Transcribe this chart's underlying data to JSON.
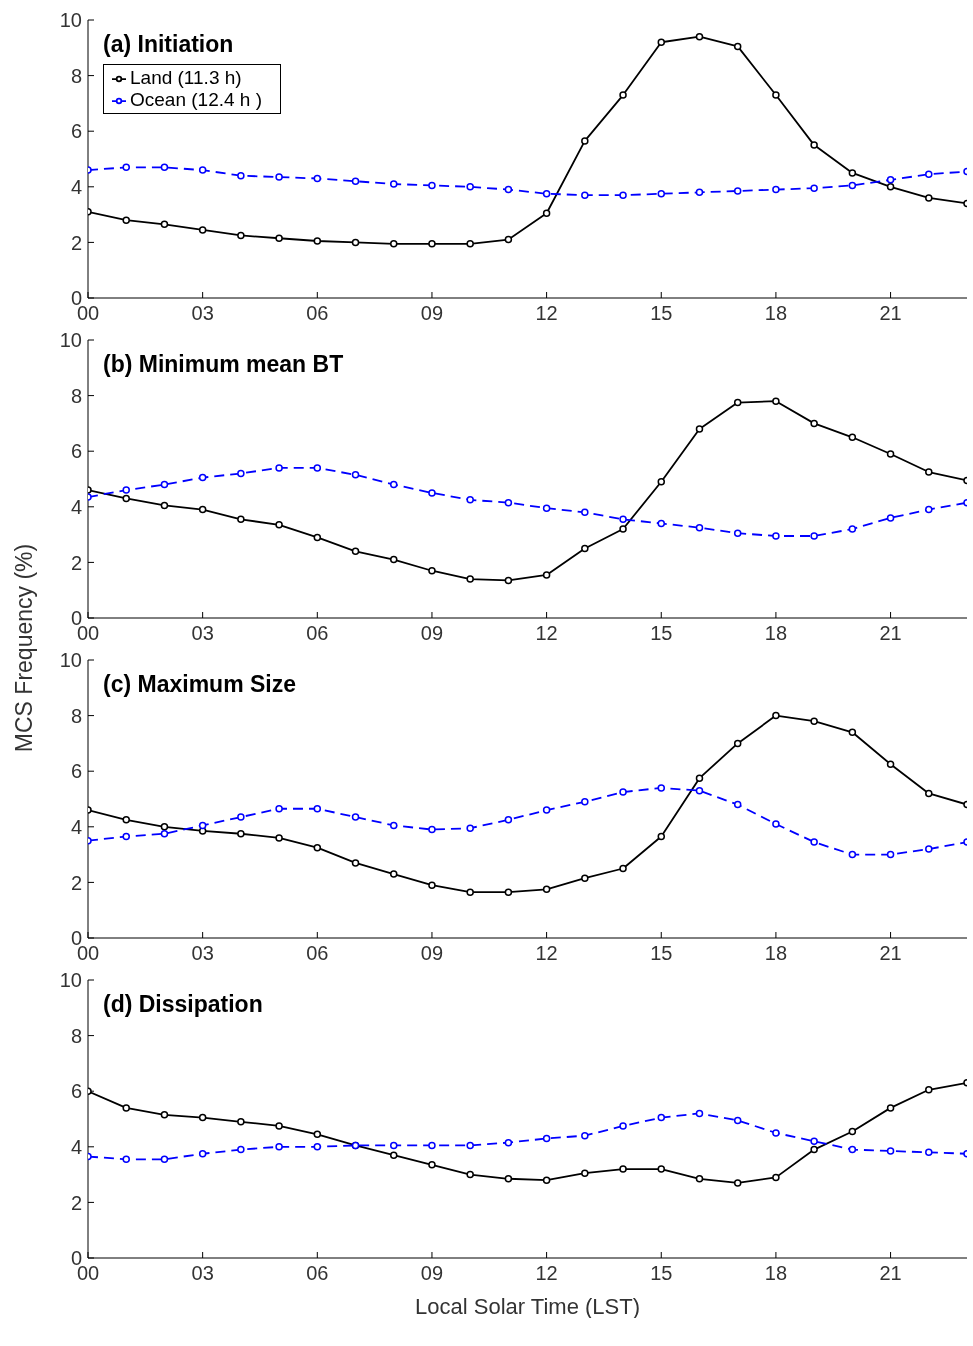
{
  "chart_data": [
    {
      "type": "line",
      "title": "(a) Initiation",
      "x": [
        0,
        1,
        2,
        3,
        4,
        5,
        6,
        7,
        8,
        9,
        10,
        11,
        12,
        13,
        14,
        15,
        16,
        17,
        18,
        19,
        20,
        21,
        22,
        23
      ],
      "xlim": [
        0,
        23
      ],
      "xticks": [
        {
          "value": 0,
          "label": "00"
        },
        {
          "value": 3,
          "label": "03"
        },
        {
          "value": 6,
          "label": "06"
        },
        {
          "value": 9,
          "label": "09"
        },
        12,
        15,
        18,
        21
      ],
      "ylim": [
        0,
        10
      ],
      "yticks": [
        0,
        2,
        4,
        6,
        8,
        10
      ],
      "grid": false,
      "legend": "top left",
      "marker": "circle",
      "series": [
        {
          "name": "Land (11.3 h)",
          "color": "#000000",
          "line_style": "solid",
          "values": [
            3.1,
            2.8,
            2.65,
            2.45,
            2.25,
            2.15,
            2.05,
            2.0,
            1.95,
            1.95,
            1.95,
            2.1,
            3.05,
            5.65,
            7.3,
            9.2,
            9.4,
            9.05,
            7.3,
            5.5,
            4.5,
            4.0,
            3.6,
            3.4
          ]
        },
        {
          "name": "Ocean (12.4 h )",
          "color": "#0000ff",
          "line_style": "dashed",
          "values": [
            4.6,
            4.7,
            4.7,
            4.6,
            4.4,
            4.35,
            4.3,
            4.2,
            4.1,
            4.05,
            4.0,
            3.9,
            3.75,
            3.7,
            3.7,
            3.75,
            3.8,
            3.85,
            3.9,
            3.95,
            4.05,
            4.25,
            4.45,
            4.55
          ]
        }
      ]
    },
    {
      "type": "line",
      "title": "(b) Minimum mean BT",
      "ylabel": "MCS Frequency (%)",
      "x": [
        0,
        1,
        2,
        3,
        4,
        5,
        6,
        7,
        8,
        9,
        10,
        11,
        12,
        13,
        14,
        15,
        16,
        17,
        18,
        19,
        20,
        21,
        22,
        23
      ],
      "xlim": [
        0,
        23
      ],
      "xticks": [
        {
          "value": 0,
          "label": "00"
        },
        {
          "value": 3,
          "label": "03"
        },
        {
          "value": 6,
          "label": "06"
        },
        {
          "value": 9,
          "label": "09"
        },
        12,
        15,
        18,
        21
      ],
      "ylim": [
        0,
        10
      ],
      "yticks": [
        0,
        2,
        4,
        6,
        8,
        10
      ],
      "grid": false,
      "marker": "circle",
      "series": [
        {
          "color": "#000000",
          "line_style": "solid",
          "values": [
            4.6,
            4.3,
            4.05,
            3.9,
            3.55,
            3.35,
            2.9,
            2.4,
            2.1,
            1.7,
            1.4,
            1.35,
            1.55,
            2.5,
            3.2,
            4.9,
            6.8,
            7.75,
            7.8,
            7.0,
            6.5,
            5.9,
            5.25,
            4.95
          ]
        },
        {
          "color": "#0000ff",
          "line_style": "dashed",
          "values": [
            4.35,
            4.6,
            4.8,
            5.05,
            5.2,
            5.4,
            5.4,
            5.15,
            4.8,
            4.5,
            4.25,
            4.15,
            3.95,
            3.8,
            3.55,
            3.4,
            3.25,
            3.05,
            2.95,
            2.95,
            3.2,
            3.6,
            3.9,
            4.15
          ]
        }
      ]
    },
    {
      "type": "line",
      "title": "(c) Maximum Size",
      "x": [
        0,
        1,
        2,
        3,
        4,
        5,
        6,
        7,
        8,
        9,
        10,
        11,
        12,
        13,
        14,
        15,
        16,
        17,
        18,
        19,
        20,
        21,
        22,
        23
      ],
      "xlim": [
        0,
        23
      ],
      "xticks": [
        {
          "value": 0,
          "label": "00"
        },
        {
          "value": 3,
          "label": "03"
        },
        {
          "value": 6,
          "label": "06"
        },
        {
          "value": 9,
          "label": "09"
        },
        12,
        15,
        18,
        21
      ],
      "ylim": [
        0,
        10
      ],
      "yticks": [
        0,
        2,
        4,
        6,
        8,
        10
      ],
      "grid": false,
      "marker": "circle",
      "series": [
        {
          "color": "#000000",
          "line_style": "solid",
          "values": [
            4.6,
            4.25,
            4.0,
            3.85,
            3.75,
            3.6,
            3.25,
            2.7,
            2.3,
            1.9,
            1.65,
            1.65,
            1.75,
            2.15,
            2.5,
            3.65,
            5.75,
            7.0,
            8.0,
            7.8,
            7.4,
            6.25,
            5.2,
            4.8
          ]
        },
        {
          "color": "#0000ff",
          "line_style": "dashed",
          "values": [
            3.5,
            3.65,
            3.75,
            4.05,
            4.35,
            4.65,
            4.65,
            4.35,
            4.05,
            3.9,
            3.95,
            4.25,
            4.6,
            4.9,
            5.25,
            5.4,
            5.3,
            4.8,
            4.1,
            3.45,
            3.0,
            3.0,
            3.2,
            3.45
          ]
        }
      ]
    },
    {
      "type": "line",
      "title": "(d) Dissipation",
      "xlabel": "Local Solar Time (LST)",
      "x": [
        0,
        1,
        2,
        3,
        4,
        5,
        6,
        7,
        8,
        9,
        10,
        11,
        12,
        13,
        14,
        15,
        16,
        17,
        18,
        19,
        20,
        21,
        22,
        23
      ],
      "xlim": [
        0,
        23
      ],
      "xticks": [
        {
          "value": 0,
          "label": "00"
        },
        {
          "value": 3,
          "label": "03"
        },
        {
          "value": 6,
          "label": "06"
        },
        {
          "value": 9,
          "label": "09"
        },
        12,
        15,
        18,
        21
      ],
      "ylim": [
        0,
        10
      ],
      "yticks": [
        0,
        2,
        4,
        6,
        8,
        10
      ],
      "grid": false,
      "marker": "circle",
      "series": [
        {
          "color": "#000000",
          "line_style": "solid",
          "values": [
            6.0,
            5.4,
            5.15,
            5.05,
            4.9,
            4.75,
            4.45,
            4.05,
            3.7,
            3.35,
            3.0,
            2.85,
            2.8,
            3.05,
            3.2,
            3.2,
            2.85,
            2.7,
            2.9,
            3.9,
            4.55,
            5.4,
            6.05,
            6.3
          ]
        },
        {
          "color": "#0000ff",
          "line_style": "dashed",
          "values": [
            3.65,
            3.55,
            3.55,
            3.75,
            3.9,
            4.0,
            4.0,
            4.05,
            4.05,
            4.05,
            4.05,
            4.15,
            4.3,
            4.4,
            4.75,
            5.05,
            5.2,
            4.95,
            4.5,
            4.2,
            3.9,
            3.85,
            3.8,
            3.75
          ]
        }
      ]
    }
  ]
}
